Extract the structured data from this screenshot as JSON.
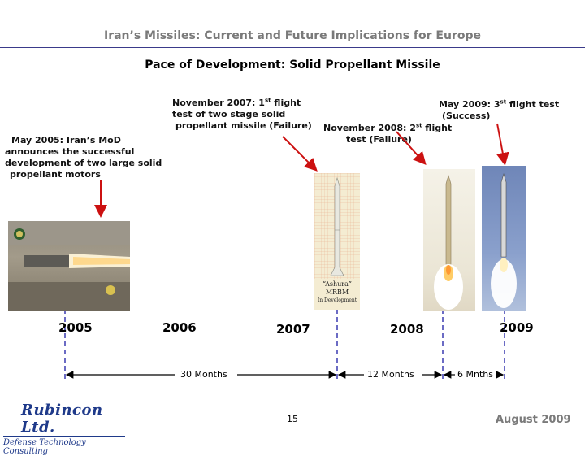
{
  "header": {
    "title": "Iran’s Missiles: Current and Future Implications for Europe",
    "subtitle": "Pace of Development: Solid Propellant Missile"
  },
  "annotations": {
    "may2005": {
      "lines": [
        "May 2005: Iran’s MoD",
        "announces the successful",
        "development of two large solid",
        "propellant motors"
      ]
    },
    "nov2007": {
      "line1_pre": "November 2007: 1",
      "line1_sup": "st",
      "line1_post": " flight",
      "line2": "test of two stage solid",
      "line3": "propellant missile (Failure)"
    },
    "nov2008": {
      "line1_pre": "November 2008: 2",
      "line1_sup": "st",
      "line1_post": " flight",
      "line2": "test (Failure)"
    },
    "may2009": {
      "line1_pre": "May 2009: 3",
      "line1_sup": "st",
      "line1_post": " flight test",
      "line2": "(Success)"
    }
  },
  "images": {
    "diagram_caption": [
      "“Ashura”",
      "MRBM",
      "In Development"
    ]
  },
  "timeline": {
    "years": [
      "2005",
      "2006",
      "2007",
      "2008",
      "2009"
    ],
    "spans": [
      {
        "label": "30 Months",
        "months": 30
      },
      {
        "label": "12 Months",
        "months": 12
      },
      {
        "label": "6 Mnths",
        "months": 6
      }
    ]
  },
  "footer": {
    "logo_main": "Rubincon Ltd.",
    "logo_sub": "Defense Technology Consulting",
    "page_number": "15",
    "date": "August 2009"
  },
  "colors": {
    "arrow_red": "#cc1111",
    "dashed_blue": "#3a3ab0",
    "logo_blue": "#1f3a8a",
    "title_gray": "#7a7a7a"
  }
}
